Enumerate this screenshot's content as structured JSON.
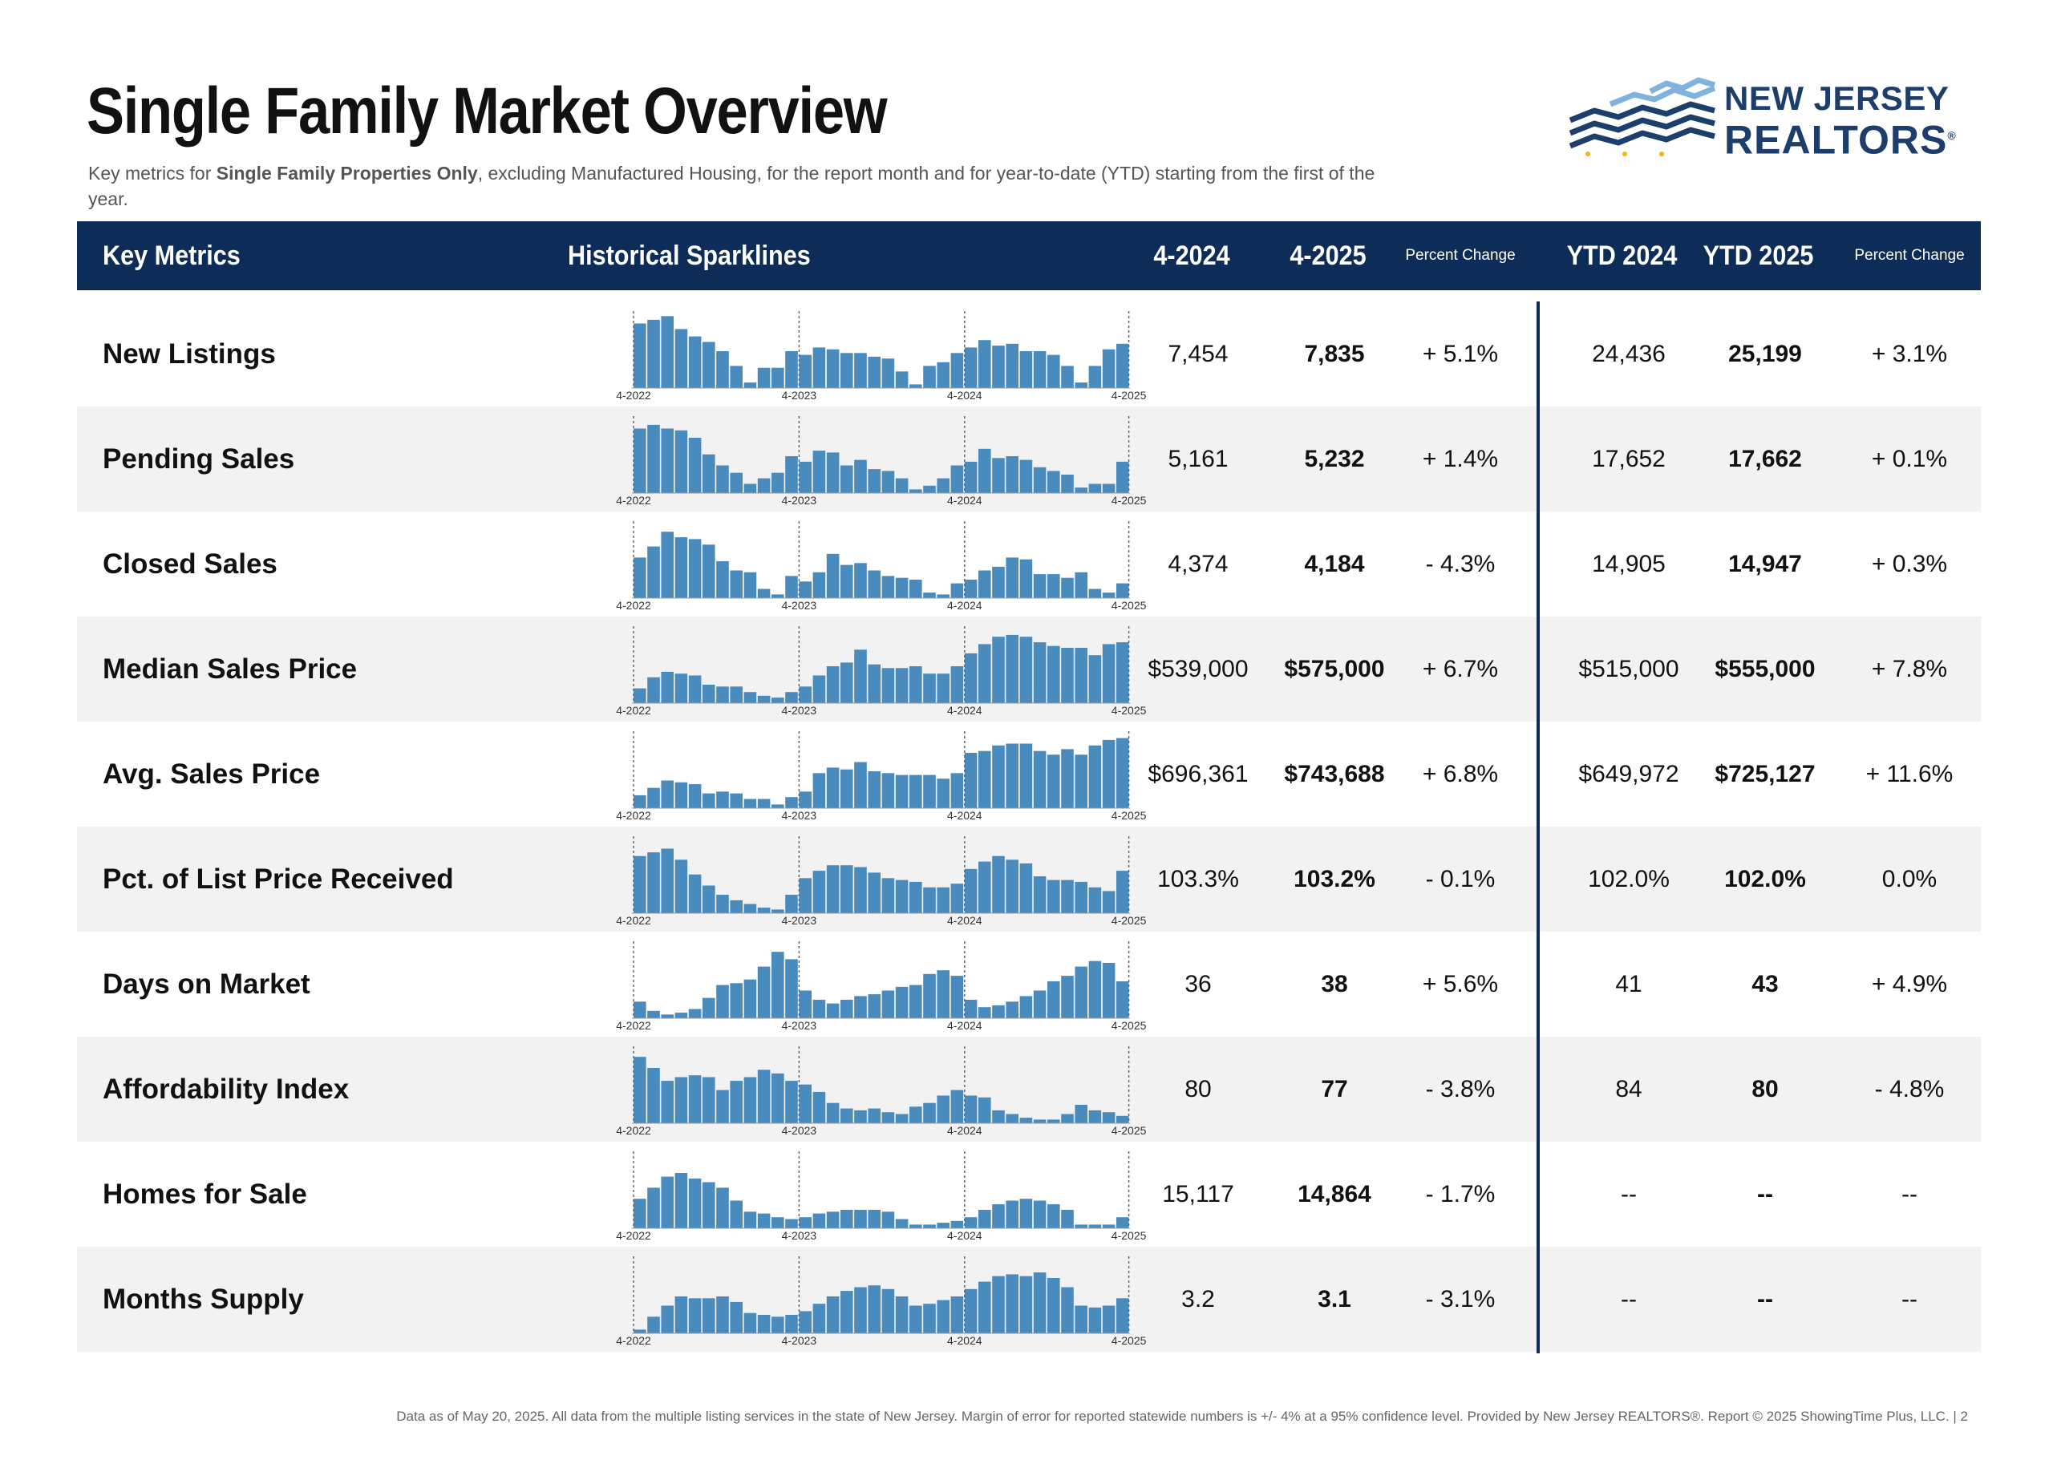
{
  "title": "Single Family Market Overview",
  "subtitle": {
    "pre": "Key metrics for ",
    "bold": "Single Family Properties Only",
    "post": ", excluding Manufactured Housing, for the report month and for year-to-date (YTD) starting from the first of the year."
  },
  "logo": {
    "line1": "NEW JERSEY",
    "line2": "REALTORS",
    "mark": "®"
  },
  "header": {
    "key_metrics": "Key Metrics",
    "sparklines": "Historical Sparklines",
    "col1": "4-2024",
    "col2": "4-2025",
    "pct1": "Percent Change",
    "ytd1": "YTD 2024",
    "ytd2": "YTD 2025",
    "pct2": "Percent Change"
  },
  "spark_axis": [
    "4-2022",
    "4-2023",
    "4-2024",
    "4-2025"
  ],
  "colors": {
    "header_bg": "#0d2d58",
    "bar": "#4a8bbd",
    "row_shade": "#f2f2f2"
  },
  "rows": [
    {
      "metric": "New Listings",
      "v2024": "7,454",
      "v2025": "7,835",
      "pct": "+ 5.1%",
      "ytd2024": "24,436",
      "ytd2025": "25,199",
      "ytdpct": "+ 3.1%",
      "spark": [
        70,
        74,
        78,
        64,
        56,
        50,
        40,
        24,
        6,
        22,
        22,
        40,
        36,
        44,
        42,
        38,
        38,
        34,
        32,
        18,
        4,
        24,
        28,
        38,
        44,
        52,
        46,
        48,
        40,
        40,
        36,
        24,
        6,
        24,
        42,
        48
      ]
    },
    {
      "metric": "Pending Sales",
      "v2024": "5,161",
      "v2025": "5,232",
      "pct": "+ 1.4%",
      "ytd2024": "17,652",
      "ytd2025": "17,662",
      "ytdpct": "+ 0.1%",
      "spark": [
        70,
        74,
        70,
        68,
        60,
        42,
        30,
        22,
        10,
        16,
        22,
        40,
        34,
        46,
        44,
        30,
        36,
        26,
        24,
        16,
        4,
        8,
        16,
        30,
        34,
        48,
        38,
        40,
        36,
        28,
        24,
        20,
        6,
        10,
        10,
        34
      ]
    },
    {
      "metric": "Closed Sales",
      "v2024": "4,374",
      "v2025": "4,184",
      "pct": "- 4.3%",
      "ytd2024": "14,905",
      "ytd2025": "14,947",
      "ytdpct": "+ 0.3%",
      "spark": [
        44,
        56,
        72,
        66,
        64,
        58,
        40,
        30,
        28,
        10,
        4,
        24,
        18,
        28,
        48,
        36,
        38,
        30,
        24,
        22,
        20,
        6,
        4,
        16,
        20,
        30,
        34,
        44,
        42,
        26,
        26,
        22,
        28,
        10,
        6,
        16
      ]
    },
    {
      "metric": "Median Sales Price",
      "v2024": "$539,000",
      "v2025": "$575,000",
      "pct": "+ 6.7%",
      "ytd2024": "$515,000",
      "ytd2025": "$555,000",
      "ytdpct": "+ 7.8%",
      "spark": [
        16,
        28,
        34,
        32,
        30,
        20,
        18,
        18,
        12,
        8,
        6,
        12,
        18,
        30,
        40,
        44,
        58,
        42,
        38,
        38,
        40,
        32,
        32,
        40,
        54,
        64,
        72,
        74,
        72,
        66,
        62,
        60,
        60,
        52,
        64,
        66
      ]
    },
    {
      "metric": "Avg. Sales Price",
      "v2024": "$696,361",
      "v2025": "$743,688",
      "pct": "+ 6.8%",
      "ytd2024": "$649,972",
      "ytd2025": "$725,127",
      "ytdpct": "+ 11.6%",
      "spark": [
        14,
        22,
        30,
        28,
        26,
        16,
        18,
        16,
        10,
        10,
        4,
        12,
        18,
        38,
        44,
        42,
        50,
        40,
        38,
        36,
        36,
        36,
        32,
        38,
        60,
        62,
        68,
        70,
        70,
        62,
        58,
        64,
        58,
        68,
        74,
        76
      ]
    },
    {
      "metric": "Pct. of List Price Received",
      "v2024": "103.3%",
      "v2025": "103.2%",
      "pct": "- 0.1%",
      "ytd2024": "102.0%",
      "ytd2025": "102.0%",
      "ytdpct": "0.0%",
      "spark": [
        62,
        66,
        70,
        58,
        42,
        30,
        20,
        14,
        10,
        6,
        4,
        20,
        38,
        46,
        52,
        52,
        50,
        44,
        38,
        36,
        34,
        28,
        28,
        32,
        48,
        56,
        62,
        58,
        54,
        40,
        36,
        36,
        34,
        28,
        24,
        46
      ]
    },
    {
      "metric": "Days on Market",
      "v2024": "36",
      "v2025": "38",
      "pct": "+ 5.6%",
      "ytd2024": "41",
      "ytd2025": "43",
      "ytdpct": "+ 4.9%",
      "spark": [
        18,
        8,
        4,
        6,
        10,
        22,
        36,
        38,
        42,
        56,
        72,
        64,
        30,
        20,
        16,
        20,
        24,
        26,
        30,
        34,
        36,
        48,
        52,
        46,
        20,
        12,
        14,
        18,
        24,
        30,
        40,
        46,
        56,
        62,
        60,
        40
      ]
    },
    {
      "metric": "Affordability Index",
      "v2024": "80",
      "v2025": "77",
      "pct": "- 3.8%",
      "ytd2024": "84",
      "ytd2025": "80",
      "ytdpct": "- 4.8%",
      "spark": [
        72,
        60,
        46,
        50,
        52,
        50,
        36,
        46,
        50,
        58,
        54,
        46,
        42,
        34,
        22,
        16,
        14,
        16,
        12,
        10,
        18,
        22,
        30,
        36,
        30,
        28,
        14,
        10,
        6,
        4,
        4,
        10,
        20,
        14,
        12,
        8
      ]
    },
    {
      "metric": "Homes for Sale",
      "v2024": "15,117",
      "v2025": "14,864",
      "pct": "- 1.7%",
      "ytd2024": "--",
      "ytd2025": "--",
      "ytdpct": "--",
      "spark": [
        32,
        44,
        56,
        60,
        54,
        50,
        44,
        30,
        18,
        16,
        12,
        10,
        12,
        16,
        18,
        20,
        20,
        20,
        18,
        10,
        4,
        4,
        6,
        8,
        12,
        20,
        26,
        30,
        32,
        30,
        26,
        20,
        4,
        4,
        4,
        12
      ]
    },
    {
      "metric": "Months Supply",
      "v2024": "3.2",
      "v2025": "3.1",
      "pct": "- 3.1%",
      "ytd2024": "--",
      "ytd2025": "--",
      "ytdpct": "--",
      "spark": [
        4,
        18,
        30,
        40,
        38,
        38,
        40,
        34,
        22,
        20,
        18,
        20,
        24,
        32,
        40,
        46,
        50,
        52,
        48,
        40,
        30,
        32,
        36,
        40,
        48,
        56,
        62,
        64,
        62,
        66,
        60,
        50,
        30,
        28,
        30,
        38
      ]
    }
  ],
  "footer": "Data as of May 20, 2025. All data from the multiple listing services in the state of New Jersey. Margin of error for reported statewide numbers is +/- 4% at a 95% confidence level. Provided by New Jersey REALTORS®. Report © 2025 ShowingTime Plus, LLC. | 2"
}
